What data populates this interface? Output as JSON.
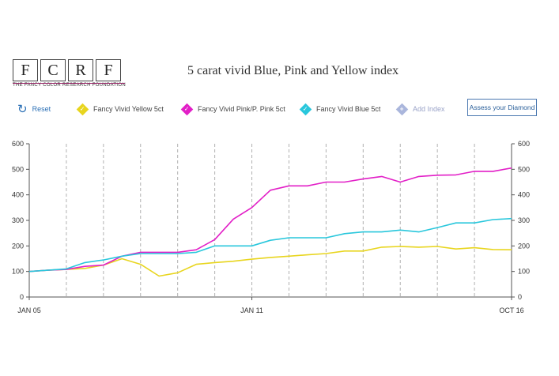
{
  "logo": {
    "letters": [
      "F",
      "C",
      "R",
      "F"
    ],
    "tagline": "THE FANCY COLOR RESEARCH FOUNDATION"
  },
  "title": "5 carat vivid Blue, Pink and Yellow index",
  "controls": {
    "reset_label": "Reset",
    "series_toggles": [
      {
        "label": "Fancy Vivid Yellow 5ct",
        "color": "#e8d51e"
      },
      {
        "label": "Fancy Vivid Pink/P. Pink 5ct",
        "color": "#e21fc7"
      },
      {
        "label": "Fancy Vivid Blue 5ct",
        "color": "#29c7dc"
      }
    ],
    "add_index_label": "Add Index",
    "assess_label": "Assess your Diamond"
  },
  "chart_data": {
    "type": "line",
    "title": "5 carat vivid Blue, Pink and Yellow index",
    "xlabel": "",
    "ylabel": "",
    "ylim": [
      0,
      600
    ],
    "y_ticks": [
      0,
      100,
      200,
      300,
      400,
      500,
      600
    ],
    "x_tick_labels": [
      "JAN 05",
      "JAN 11",
      "OCT 16"
    ],
    "grid": "vertical dashed",
    "series": [
      {
        "name": "Fancy Vivid Yellow 5ct",
        "color": "#e8d51e",
        "values": [
          100,
          105,
          108,
          112,
          125,
          150,
          128,
          82,
          95,
          128,
          135,
          140,
          148,
          155,
          160,
          165,
          170,
          180,
          180,
          195,
          198,
          195,
          198,
          188,
          193,
          186,
          185
        ]
      },
      {
        "name": "Fancy Vivid Pink/P. Pink 5ct",
        "color": "#e21fc7",
        "values": [
          100,
          105,
          108,
          120,
          125,
          160,
          175,
          175,
          175,
          185,
          225,
          305,
          350,
          418,
          435,
          435,
          450,
          450,
          462,
          472,
          450,
          472,
          477,
          478,
          492,
          492,
          505
        ]
      },
      {
        "name": "Fancy Vivid Blue 5ct",
        "color": "#29c7dc",
        "values": [
          100,
          105,
          110,
          135,
          145,
          160,
          170,
          170,
          170,
          175,
          200,
          200,
          200,
          222,
          232,
          232,
          232,
          248,
          255,
          255,
          262,
          255,
          272,
          290,
          290,
          303,
          307
        ]
      }
    ]
  }
}
